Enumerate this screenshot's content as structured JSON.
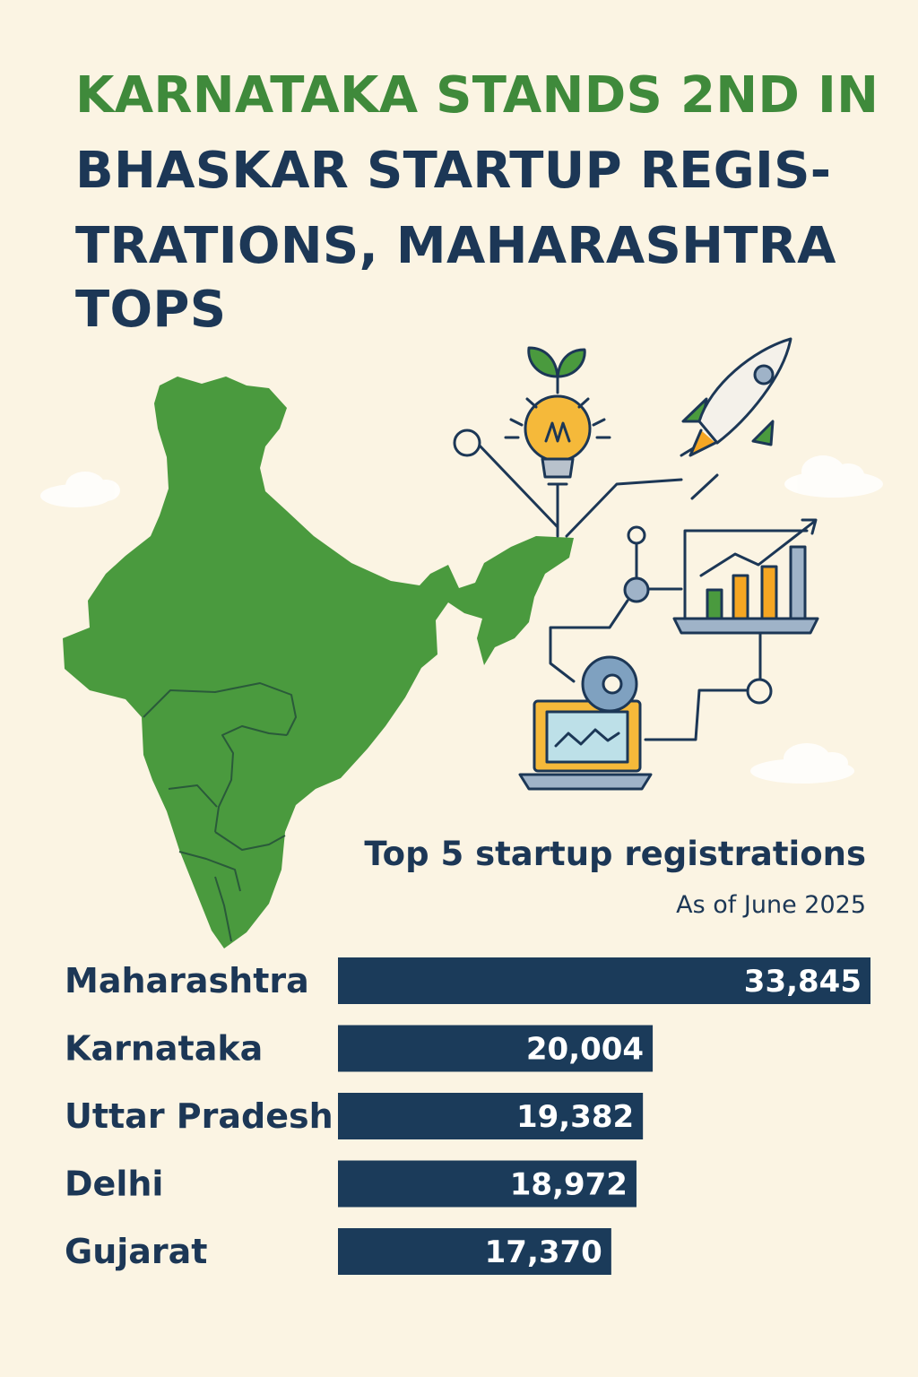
{
  "headline": {
    "line1": "KARNATAKA STANDS 2ND IN",
    "line2": "BHASKAR STARTUP REGIS-",
    "line3": "TRATIONS, MAHARASHTRA",
    "line4": "TOPS"
  },
  "colors": {
    "background": "#fbf4e3",
    "headline_accent": "#3f8a3b",
    "navy": "#1c3756",
    "bar": "#1b3b5a",
    "map_green": "#4a9a3e",
    "orange": "#f5a623"
  },
  "icons": [
    "map-of-india",
    "lightbulb-sprout-icon",
    "rocket-icon",
    "bar-chart-icon",
    "laptop-icon",
    "network-nodes-icon"
  ],
  "chart_data": {
    "type": "bar",
    "orientation": "horizontal",
    "title": "Top 5 startup registrations",
    "subtitle": "As of June 2025",
    "categories": [
      "Maharashtra",
      "Karnataka",
      "Uttar Pradesh",
      "Delhi",
      "Gujarat"
    ],
    "values": [
      33845,
      20004,
      19382,
      18972,
      17370
    ],
    "value_labels": [
      "33,845",
      "20,004",
      "19,382",
      "18,972",
      "17,370"
    ],
    "grid": false,
    "legend": "none"
  }
}
